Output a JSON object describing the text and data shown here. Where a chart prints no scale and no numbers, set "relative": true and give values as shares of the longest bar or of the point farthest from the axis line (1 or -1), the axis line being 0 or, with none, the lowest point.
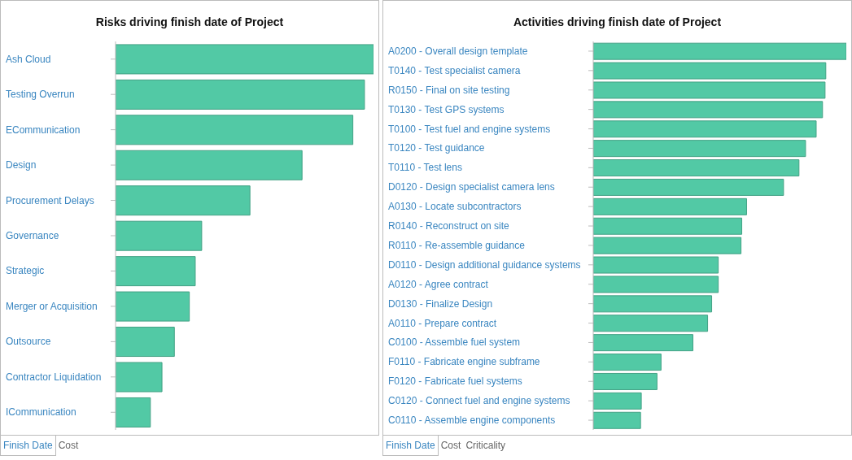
{
  "chart_data": [
    {
      "type": "bar",
      "orientation": "horizontal",
      "relative": true,
      "title": "Risks driving finish date of Project",
      "color": "#52c9a5",
      "categories": [
        "Ash Cloud",
        "Testing Overrun",
        "ECommunication",
        "Design",
        "Procurement Delays",
        "Governance",
        "Strategic",
        "Merger or Acquisition",
        "Outsource",
        "Contractor Liquidation",
        "ICommunication"
      ],
      "values": [
        1,
        0.965,
        0.92,
        0.723,
        0.521,
        0.334,
        0.309,
        0.286,
        0.228,
        0.18,
        0.135
      ],
      "annotations": [
        "Finish Date",
        "Cost"
      ]
    },
    {
      "type": "bar",
      "orientation": "horizontal",
      "relative": true,
      "title": "Activities driving finish date of Project",
      "color": "#52c9a5",
      "categories": [
        "A0200 - Overall design template",
        "T0140 - Test specialist camera",
        "R0150 - Final on site testing",
        "T0130 - Test GPS systems",
        "T0100 - Test fuel and engine systems",
        "T0120 - Test guidance",
        "T0110 - Test lens",
        "D0120 - Design specialist camera lens",
        "A0130 - Locate subcontractors",
        "R0140 - Reconstruct on site",
        "R0110 - Re-assemble guidance",
        "D0110 - Design additional guidance systems",
        "A0120 - Agree contract",
        "D0130 - Finalize Design",
        "A0110 - Prepare contract",
        "C0100 - Assemble fuel system",
        "F0110 - Fabricate engine subframe",
        "F0120 - Fabricate fuel systems",
        "C0120 - Connect fuel and engine systems",
        "C0110 - Assemble engine components"
      ],
      "values": [
        1,
        0.919,
        0.916,
        0.906,
        0.881,
        0.839,
        0.813,
        0.752,
        0.606,
        0.587,
        0.584,
        0.494,
        0.494,
        0.468,
        0.452,
        0.394,
        0.268,
        0.252,
        0.19,
        0.187
      ],
      "annotations": [
        "Finish Date",
        "Cost",
        "Criticality"
      ]
    }
  ]
}
